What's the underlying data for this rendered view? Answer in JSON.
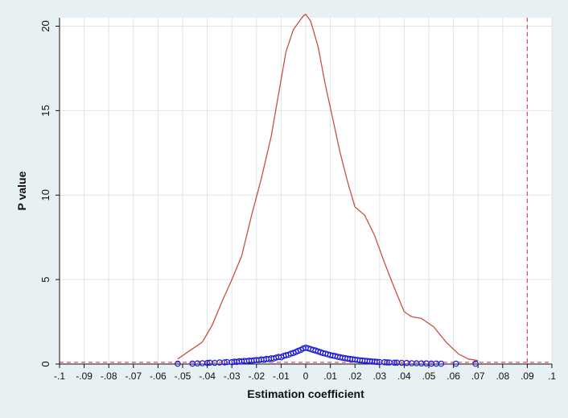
{
  "chart_data": {
    "type": "scatter",
    "title": "",
    "xlabel": "Estimation coefficient",
    "ylabel": "P value",
    "xlim": [
      -0.1,
      0.1
    ],
    "ylim": [
      0,
      20.5
    ],
    "x_ticks": [
      -0.1,
      -0.09,
      -0.08,
      -0.07,
      -0.06,
      -0.05,
      -0.04,
      -0.03,
      -0.02,
      -0.01,
      0,
      0.01,
      0.02,
      0.03,
      0.04,
      0.05,
      0.06,
      0.07,
      0.08,
      0.09,
      0.1
    ],
    "x_tick_labels": [
      "-.1",
      "-.09",
      "-.08",
      "-.07",
      "-.06",
      "-.05",
      "-.04",
      "-.03",
      "-.02",
      "-.01",
      "0",
      ".01",
      ".02",
      ".03",
      ".04",
      ".05",
      ".06",
      ".07",
      ".08",
      ".09",
      ".1"
    ],
    "y_ticks": [
      0,
      5,
      10,
      15,
      20
    ],
    "y_tick_labels": [
      "0",
      "5",
      "10",
      "15",
      "20"
    ],
    "grid": true,
    "reference_lines": [
      {
        "orientation": "horizontal",
        "value": 0.1,
        "color": "#e8436a",
        "style": "dashed"
      },
      {
        "orientation": "vertical",
        "value": 0.09,
        "color": "#e8436a",
        "style": "dashed"
      }
    ],
    "series": [
      {
        "kind": "density-line",
        "color": "#c8523d",
        "points": [
          [
            -0.052,
            0.3
          ],
          [
            -0.047,
            0.8
          ],
          [
            -0.042,
            1.3
          ],
          [
            -0.038,
            2.3
          ],
          [
            -0.034,
            3.7
          ],
          [
            -0.03,
            5.0
          ],
          [
            -0.026,
            6.4
          ],
          [
            -0.022,
            8.8
          ],
          [
            -0.018,
            11.0
          ],
          [
            -0.014,
            13.5
          ],
          [
            -0.011,
            16.0
          ],
          [
            -0.008,
            18.5
          ],
          [
            -0.005,
            19.8
          ],
          [
            -0.003,
            20.2
          ],
          [
            -0.001,
            20.6
          ],
          [
            0.0,
            20.7
          ],
          [
            0.002,
            20.3
          ],
          [
            0.005,
            18.8
          ],
          [
            0.008,
            16.5
          ],
          [
            0.011,
            14.5
          ],
          [
            0.014,
            12.5
          ],
          [
            0.017,
            10.8
          ],
          [
            0.02,
            9.3
          ],
          [
            0.024,
            8.8
          ],
          [
            0.028,
            7.6
          ],
          [
            0.032,
            6.0
          ],
          [
            0.036,
            4.5
          ],
          [
            0.04,
            3.1
          ],
          [
            0.043,
            2.8
          ],
          [
            0.047,
            2.7
          ],
          [
            0.052,
            2.2
          ],
          [
            0.057,
            1.3
          ],
          [
            0.062,
            0.6
          ],
          [
            0.066,
            0.3
          ],
          [
            0.07,
            0.2
          ]
        ]
      },
      {
        "kind": "scatter",
        "color": "#1a1ad6",
        "marker": "hollow-circle",
        "points": [
          [
            -0.052,
            0.02
          ],
          [
            -0.046,
            0.03
          ],
          [
            -0.044,
            0.04
          ],
          [
            -0.042,
            0.05
          ],
          [
            -0.04,
            0.06
          ],
          [
            -0.039,
            0.08
          ],
          [
            -0.037,
            0.07
          ],
          [
            -0.035,
            0.09
          ],
          [
            -0.033,
            0.1
          ],
          [
            -0.032,
            0.12
          ],
          [
            -0.03,
            0.11
          ],
          [
            -0.029,
            0.14
          ],
          [
            -0.028,
            0.13
          ],
          [
            -0.027,
            0.16
          ],
          [
            -0.026,
            0.15
          ],
          [
            -0.025,
            0.18
          ],
          [
            -0.024,
            0.17
          ],
          [
            -0.023,
            0.2
          ],
          [
            -0.022,
            0.19
          ],
          [
            -0.021,
            0.22
          ],
          [
            -0.02,
            0.24
          ],
          [
            -0.019,
            0.23
          ],
          [
            -0.018,
            0.27
          ],
          [
            -0.017,
            0.26
          ],
          [
            -0.016,
            0.3
          ],
          [
            -0.015,
            0.29
          ],
          [
            -0.014,
            0.34
          ],
          [
            -0.013,
            0.33
          ],
          [
            -0.012,
            0.38
          ],
          [
            -0.011,
            0.42
          ],
          [
            -0.01,
            0.4
          ],
          [
            -0.009,
            0.48
          ],
          [
            -0.008,
            0.52
          ],
          [
            -0.007,
            0.55
          ],
          [
            -0.006,
            0.62
          ],
          [
            -0.005,
            0.66
          ],
          [
            -0.004,
            0.72
          ],
          [
            -0.003,
            0.78
          ],
          [
            -0.002,
            0.84
          ],
          [
            -0.001,
            0.92
          ],
          [
            0.0,
            0.97
          ],
          [
            0.001,
            0.93
          ],
          [
            0.002,
            0.88
          ],
          [
            0.003,
            0.84
          ],
          [
            0.004,
            0.8
          ],
          [
            0.005,
            0.75
          ],
          [
            0.006,
            0.7
          ],
          [
            0.007,
            0.65
          ],
          [
            0.008,
            0.62
          ],
          [
            0.009,
            0.57
          ],
          [
            0.01,
            0.53
          ],
          [
            0.011,
            0.5
          ],
          [
            0.012,
            0.47
          ],
          [
            0.013,
            0.43
          ],
          [
            0.014,
            0.4
          ],
          [
            0.015,
            0.37
          ],
          [
            0.016,
            0.35
          ],
          [
            0.017,
            0.32
          ],
          [
            0.018,
            0.3
          ],
          [
            0.019,
            0.28
          ],
          [
            0.02,
            0.26
          ],
          [
            0.021,
            0.24
          ],
          [
            0.022,
            0.22
          ],
          [
            0.023,
            0.21
          ],
          [
            0.024,
            0.19
          ],
          [
            0.025,
            0.18
          ],
          [
            0.026,
            0.16
          ],
          [
            0.027,
            0.15
          ],
          [
            0.028,
            0.14
          ],
          [
            0.029,
            0.13
          ],
          [
            0.03,
            0.12
          ],
          [
            0.032,
            0.11
          ],
          [
            0.033,
            0.1
          ],
          [
            0.034,
            0.09
          ],
          [
            0.036,
            0.08
          ],
          [
            0.037,
            0.08
          ],
          [
            0.039,
            0.07
          ],
          [
            0.041,
            0.06
          ],
          [
            0.043,
            0.05
          ],
          [
            0.045,
            0.05
          ],
          [
            0.047,
            0.04
          ],
          [
            0.049,
            0.04
          ],
          [
            0.051,
            0.03
          ],
          [
            0.053,
            0.03
          ],
          [
            0.055,
            0.02
          ],
          [
            0.061,
            0.02
          ],
          [
            0.069,
            0.02
          ]
        ]
      }
    ]
  }
}
